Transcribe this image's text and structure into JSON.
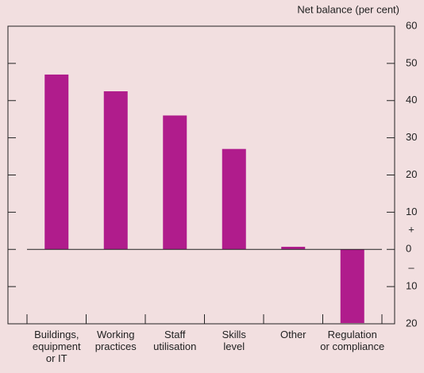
{
  "chart_data": {
    "type": "bar",
    "y_axis_label": "Net balance (per cent)",
    "categories": [
      "Buildings,\nequipment\nor IT",
      "Working\npractices",
      "Staff\nutilisation",
      "Skills\nlevel",
      "Other",
      "Regulation\nor compliance"
    ],
    "values": [
      47,
      42.5,
      36,
      27,
      0.7,
      -19.8
    ],
    "color": "#b01c8c",
    "ylim": [
      -20,
      60
    ],
    "yticks": [
      {
        "value": -20,
        "label": "20"
      },
      {
        "value": -10,
        "label": "10"
      },
      0,
      10,
      20,
      30,
      40,
      50,
      60
    ],
    "sign_labels": [
      "+",
      "–"
    ]
  }
}
